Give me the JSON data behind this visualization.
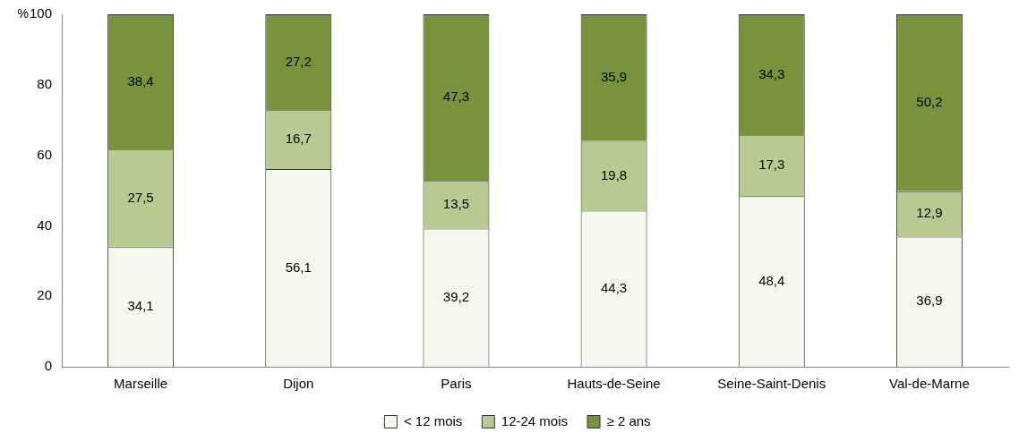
{
  "chart_data": {
    "type": "bar",
    "stacked": true,
    "ylabel": "%",
    "categories": [
      "Marseille",
      "Dijon",
      "Paris",
      "Hauts-de-Seine",
      "Seine-Saint-Denis",
      "Val-de-Marne"
    ],
    "series": [
      {
        "name": "< 12 mois",
        "color": "#f6f7ec",
        "values": [
          34.1,
          56.1,
          39.2,
          44.3,
          48.4,
          36.9
        ],
        "value_labels": [
          "34,1",
          "56,1",
          "39,2",
          "44,3",
          "48,4",
          "36,9"
        ]
      },
      {
        "name": "12-24 mois",
        "color": "#b7cb91",
        "values": [
          27.5,
          16.7,
          13.5,
          19.8,
          17.3,
          12.9
        ],
        "value_labels": [
          "27,5",
          "16,7",
          "13,5",
          "19,8",
          "17,3",
          "12,9"
        ]
      },
      {
        "name": "≥ 2 ans",
        "color": "#77933c",
        "values": [
          38.4,
          27.2,
          47.3,
          35.9,
          34.3,
          50.2
        ],
        "value_labels": [
          "38,4",
          "27,2",
          "47,3",
          "35,9",
          "34,3",
          "50,2"
        ]
      }
    ],
    "ylim": [
      0,
      100
    ],
    "yticks": [
      0,
      20,
      40,
      60,
      80,
      100
    ],
    "grid": false,
    "legend": "bottom"
  }
}
